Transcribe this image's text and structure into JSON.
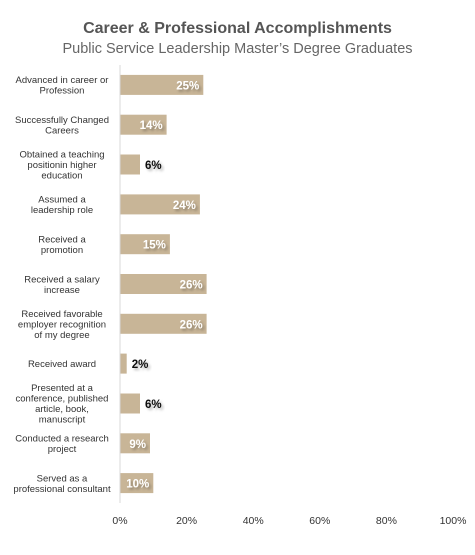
{
  "title": "Career & Professional Accomplishments",
  "subtitle": "Public Service Leadership Master’s Degree Graduates",
  "chart_data": {
    "type": "bar",
    "orientation": "horizontal",
    "title": "Career & Professional Accomplishments",
    "subtitle": "Public Service Leadership Master’s Degree Graduates",
    "categories": [
      [
        "Advanced in career or",
        "Profession"
      ],
      [
        "Successfully Changed",
        "Careers"
      ],
      [
        "Obtained a  teaching",
        "positionin higher",
        "education"
      ],
      [
        "Assumed a",
        "leadership role"
      ],
      [
        "Received a",
        "promotion"
      ],
      [
        "Received a salary",
        "increase"
      ],
      [
        "Received favorable",
        "employer recognition",
        "of my degree"
      ],
      [
        "Received award"
      ],
      [
        "Presented at a",
        "conference, published",
        "article, book,",
        "manuscript"
      ],
      [
        "Conducted a research",
        "project"
      ],
      [
        "Served as a",
        "professional consultant"
      ]
    ],
    "values": [
      25,
      14,
      6,
      24,
      15,
      26,
      26,
      2,
      6,
      9,
      10
    ],
    "value_labels": [
      "25%",
      "14%",
      "6%",
      "24%",
      "15%",
      "26%",
      "26%",
      "2%",
      "6%",
      "9%",
      "10%"
    ],
    "xlim": [
      0,
      100
    ],
    "xticks": [
      0,
      20,
      40,
      60,
      80,
      100
    ],
    "xtick_labels": [
      "0%",
      "20%",
      "40%",
      "60%",
      "80%",
      "100%"
    ],
    "grid": false,
    "bar_color": "#c8b597"
  }
}
